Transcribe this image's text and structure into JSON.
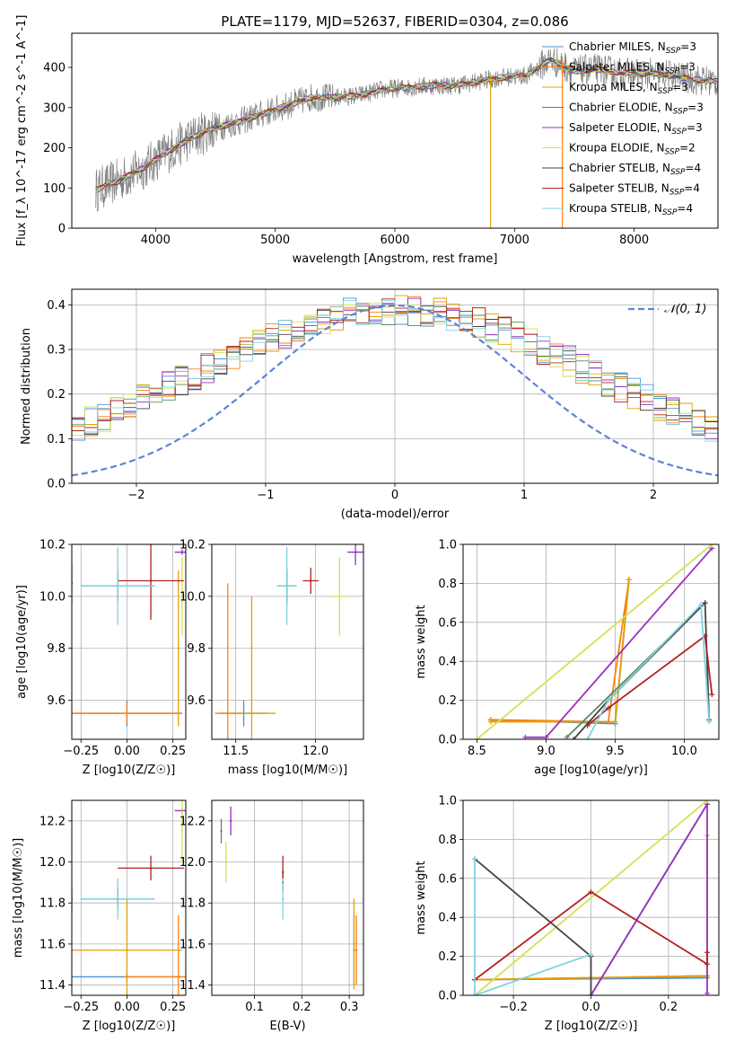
{
  "figure_title": "PLATE=1179, MJD=52637, FIBERID=0304, z=0.086",
  "models": [
    {
      "name": "Chabrier MILES",
      "nssp": "3",
      "color": "#4a90d9"
    },
    {
      "name": "Salpeter MILES",
      "nssp": "3",
      "color": "#ff7f0e"
    },
    {
      "name": "Kroupa MILES",
      "nssp": "3",
      "color": "#e69f00"
    },
    {
      "name": "Chabrier ELODIE",
      "nssp": "3",
      "color": "#5a8a5a"
    },
    {
      "name": "Salpeter ELODIE",
      "nssp": "3",
      "color": "#9b30c0"
    },
    {
      "name": "Kroupa ELODIE",
      "nssp": "2",
      "color": "#d4e157"
    },
    {
      "name": "Chabrier STELIB",
      "nssp": "4",
      "color": "#444444"
    },
    {
      "name": "Salpeter STELIB",
      "nssp": "4",
      "color": "#b22222"
    },
    {
      "name": "Kroupa STELIB",
      "nssp": "4",
      "color": "#7fd3e0"
    }
  ],
  "chart_data": [
    {
      "id": "spectrum",
      "type": "line",
      "xlabel": "wavelength [Angstrom, rest frame]",
      "ylabel": "Flux [f_λ 10^-17 erg cm^-2 s^-1 A^-1]",
      "xlim": [
        3300,
        8700
      ],
      "ylim": [
        0,
        485
      ],
      "xticks": [
        4000,
        5000,
        6000,
        7000,
        8000
      ],
      "yticks": [
        0,
        100,
        200,
        300,
        400
      ],
      "legend_position": "right",
      "continuum_points": [
        [
          3500,
          95
        ],
        [
          3700,
          120
        ],
        [
          3900,
          150
        ],
        [
          4100,
          190
        ],
        [
          4300,
          225
        ],
        [
          4500,
          250
        ],
        [
          4700,
          265
        ],
        [
          4900,
          285
        ],
        [
          5100,
          305
        ],
        [
          5300,
          325
        ],
        [
          5500,
          325
        ],
        [
          5700,
          330
        ],
        [
          5900,
          345
        ],
        [
          6100,
          350
        ],
        [
          6300,
          355
        ],
        [
          6500,
          355
        ],
        [
          6700,
          365
        ],
        [
          6900,
          375
        ],
        [
          7100,
          380
        ],
        [
          7300,
          420
        ],
        [
          7500,
          390
        ],
        [
          7700,
          395
        ],
        [
          7900,
          385
        ],
        [
          8100,
          385
        ],
        [
          8300,
          380
        ],
        [
          8500,
          370
        ],
        [
          8700,
          365
        ]
      ]
    },
    {
      "id": "residuals",
      "type": "histogram",
      "xlabel": "(data-model)/error",
      "ylabel": "Normed distribution",
      "xlim": [
        -2.5,
        2.5
      ],
      "ylim": [
        0,
        0.435
      ],
      "xticks": [
        -2,
        -1,
        0,
        1,
        2
      ],
      "yticks": [
        0.0,
        0.1,
        0.2,
        0.3,
        0.4
      ],
      "reference_curve": "N(0,1)",
      "legend_position": "top-right"
    },
    {
      "id": "age_vs_Z",
      "type": "scatter",
      "xlabel": "Z [log10(Z/Z☉)]",
      "ylabel": "age  [log10(age/yr)]",
      "xlim": [
        -0.3,
        0.32
      ],
      "ylim": [
        9.45,
        10.2
      ],
      "xticks": [
        -0.25,
        0.0,
        0.25
      ],
      "yticks": [
        9.6,
        9.8,
        10.0,
        10.2
      ],
      "points": [
        {
          "model": "Chabrier MILES",
          "x": 0.0,
          "y": 9.55,
          "xerr": 0.3,
          "yerr": 0.05
        },
        {
          "model": "Salpeter MILES",
          "x": 0.0,
          "y": 9.55,
          "xerr": 0.3,
          "yerr": 0.04
        },
        {
          "model": "Kroupa MILES",
          "x": 0.28,
          "y": 9.8,
          "xerr": 0.0,
          "yerr": 0.3
        },
        {
          "model": "Chabrier ELODIE",
          "x": -0.3,
          "y": 10.05,
          "xerr": 0.0,
          "yerr": 0.08
        },
        {
          "model": "Salpeter ELODIE",
          "x": 0.3,
          "y": 10.17,
          "xerr": 0.04,
          "yerr": 0.01
        },
        {
          "model": "Kroupa ELODIE",
          "x": 0.3,
          "y": 10.0,
          "xerr": 0.0,
          "yerr": 0.15
        },
        {
          "model": "Chabrier STELIB",
          "x": -0.05,
          "y": 10.04,
          "xerr": 0.2,
          "yerr": 0.06
        },
        {
          "model": "Salpeter STELIB",
          "x": 0.13,
          "y": 10.06,
          "xerr": 0.18,
          "yerr": 0.15
        },
        {
          "model": "Kroupa STELIB",
          "x": -0.05,
          "y": 10.04,
          "xerr": 0.2,
          "yerr": 0.15
        }
      ]
    },
    {
      "id": "age_vs_mass",
      "type": "scatter",
      "xlabel": "mass [log10(M/M☉)]",
      "ylabel": "",
      "xlim": [
        11.35,
        12.3
      ],
      "ylim": [
        9.45,
        10.2
      ],
      "xticks": [
        11.5,
        12.0
      ],
      "yticks": [
        9.6,
        9.8,
        10.0,
        10.2
      ],
      "points": [
        {
          "model": "Chabrier MILES",
          "x": 11.55,
          "y": 9.55,
          "xerr": 0.15,
          "yerr": 0.05
        },
        {
          "model": "Salpeter MILES",
          "x": 11.45,
          "y": 9.55,
          "xerr": 0.08,
          "yerr": 0.5
        },
        {
          "model": "Kroupa MILES",
          "x": 11.6,
          "y": 9.55,
          "xerr": 0.15,
          "yerr": 0.45
        },
        {
          "model": "Chabrier ELODIE",
          "x": 11.82,
          "y": 10.04,
          "xerr": 0.06,
          "yerr": 0.07
        },
        {
          "model": "Salpeter ELODIE",
          "x": 12.25,
          "y": 10.17,
          "xerr": 0.05,
          "yerr": 0.05
        },
        {
          "model": "Kroupa ELODIE",
          "x": 12.15,
          "y": 10.0,
          "xerr": 0.05,
          "yerr": 0.15
        },
        {
          "model": "Chabrier STELIB",
          "x": 11.82,
          "y": 10.04,
          "xerr": 0.06,
          "yerr": 0.06
        },
        {
          "model": "Salpeter STELIB",
          "x": 11.97,
          "y": 10.06,
          "xerr": 0.05,
          "yerr": 0.05
        },
        {
          "model": "Kroupa STELIB",
          "x": 11.82,
          "y": 10.04,
          "xerr": 0.06,
          "yerr": 0.15
        }
      ]
    },
    {
      "id": "weight_vs_age",
      "type": "line",
      "xlabel": "age  [log10(age/yr)]",
      "ylabel": "mass weight",
      "xlim": [
        8.4,
        10.25
      ],
      "ylim": [
        0,
        1
      ],
      "xticks": [
        8.5,
        9.0,
        9.5,
        10.0
      ],
      "yticks": [
        0.0,
        0.2,
        0.4,
        0.6,
        0.8,
        1.0
      ],
      "series": [
        {
          "model": "Chabrier MILES",
          "x": [
            8.6,
            9.5,
            9.6
          ],
          "y": [
            0.1,
            0.08,
            0.82
          ]
        },
        {
          "model": "Salpeter MILES",
          "x": [
            8.6,
            9.45,
            9.6
          ],
          "y": [
            0.1,
            0.09,
            0.82
          ]
        },
        {
          "model": "Kroupa MILES",
          "x": [
            8.6,
            9.5,
            9.6
          ],
          "y": [
            0.09,
            0.09,
            0.82
          ]
        },
        {
          "model": "Chabrier ELODIE",
          "x": [
            9.15,
            10.15
          ],
          "y": [
            0.01,
            0.7
          ]
        },
        {
          "model": "Salpeter ELODIE",
          "x": [
            8.85,
            9.0,
            10.2
          ],
          "y": [
            0.01,
            0.01,
            0.98
          ]
        },
        {
          "model": "Kroupa ELODIE",
          "x": [
            8.5,
            10.2
          ],
          "y": [
            0.0,
            1.0
          ]
        },
        {
          "model": "Chabrier STELIB",
          "x": [
            9.2,
            9.45,
            10.15,
            10.18
          ],
          "y": [
            0.0,
            0.2,
            0.7,
            0.1
          ]
        },
        {
          "model": "Salpeter STELIB",
          "x": [
            9.3,
            9.45,
            10.15,
            10.2
          ],
          "y": [
            0.07,
            0.16,
            0.53,
            0.23
          ]
        },
        {
          "model": "Kroupa STELIB",
          "x": [
            9.3,
            9.45,
            10.12,
            10.18
          ],
          "y": [
            0.0,
            0.2,
            0.69,
            0.09
          ]
        }
      ]
    },
    {
      "id": "mass_vs_Z",
      "type": "scatter",
      "xlabel": "Z [log10(Z/Z☉)]",
      "ylabel": "mass [log10(M/M☉)]",
      "xlim": [
        -0.3,
        0.32
      ],
      "ylim": [
        11.35,
        12.3
      ],
      "xticks": [
        -0.25,
        0.0,
        0.25
      ],
      "yticks": [
        11.4,
        11.6,
        11.8,
        12.0,
        12.2
      ],
      "points": [
        {
          "model": "Chabrier MILES",
          "x": 0.0,
          "y": 11.44,
          "xerr": 0.3,
          "yerr": 0.02
        },
        {
          "model": "Salpeter MILES",
          "x": 0.28,
          "y": 11.44,
          "xerr": 0.3,
          "yerr": 0.3
        },
        {
          "model": "Kroupa MILES",
          "x": 0.0,
          "y": 11.57,
          "xerr": 0.3,
          "yerr": 0.25
        },
        {
          "model": "Chabrier ELODIE",
          "x": -0.3,
          "y": 11.82,
          "xerr": 0.0,
          "yerr": 0.06
        },
        {
          "model": "Salpeter ELODIE",
          "x": 0.3,
          "y": 12.25,
          "xerr": 0.04,
          "yerr": 0.01
        },
        {
          "model": "Kroupa ELODIE",
          "x": 0.3,
          "y": 12.15,
          "xerr": 0.0,
          "yerr": 0.15
        },
        {
          "model": "Chabrier STELIB",
          "x": -0.05,
          "y": 11.82,
          "xerr": 0.2,
          "yerr": 0.05
        },
        {
          "model": "Salpeter STELIB",
          "x": 0.13,
          "y": 11.97,
          "xerr": 0.18,
          "yerr": 0.06
        },
        {
          "model": "Kroupa STELIB",
          "x": -0.05,
          "y": 11.82,
          "xerr": 0.2,
          "yerr": 0.1
        }
      ]
    },
    {
      "id": "mass_vs_ebv",
      "type": "scatter",
      "xlabel": "E(B-V)",
      "ylabel": "",
      "xlim": [
        0.01,
        0.33
      ],
      "ylim": [
        11.35,
        12.3
      ],
      "xticks": [
        0.1,
        0.2,
        0.3
      ],
      "yticks": [
        11.4,
        11.6,
        11.8,
        12.0,
        12.2
      ],
      "points": [
        {
          "model": "Chabrier MILES",
          "x": 0.31,
          "y": 11.57,
          "xerr": 0.0,
          "yerr": 0.17
        },
        {
          "model": "Salpeter MILES",
          "x": 0.315,
          "y": 11.57,
          "xerr": 0.0,
          "yerr": 0.17
        },
        {
          "model": "Kroupa MILES",
          "x": 0.31,
          "y": 11.6,
          "xerr": 0.0,
          "yerr": 0.22
        },
        {
          "model": "Chabrier ELODIE",
          "x": 0.03,
          "y": 12.15,
          "xerr": 0.0,
          "yerr": 0.06
        },
        {
          "model": "Salpeter ELODIE",
          "x": 0.05,
          "y": 12.2,
          "xerr": 0.0,
          "yerr": 0.07
        },
        {
          "model": "Kroupa ELODIE",
          "x": 0.04,
          "y": 12.0,
          "xerr": 0.0,
          "yerr": 0.1
        },
        {
          "model": "Chabrier STELIB",
          "x": 0.16,
          "y": 11.9,
          "xerr": 0.0,
          "yerr": 0.05
        },
        {
          "model": "Salpeter STELIB",
          "x": 0.16,
          "y": 11.95,
          "xerr": 0.0,
          "yerr": 0.08
        },
        {
          "model": "Kroupa STELIB",
          "x": 0.16,
          "y": 11.82,
          "xerr": 0.0,
          "yerr": 0.1
        }
      ]
    },
    {
      "id": "weight_vs_Z",
      "type": "line",
      "xlabel": "Z [log10(Z/Z☉)]",
      "ylabel": "mass weight",
      "xlim": [
        -0.33,
        0.33
      ],
      "ylim": [
        0,
        1
      ],
      "xticks": [
        -0.2,
        0.0,
        0.2
      ],
      "yticks": [
        0.0,
        0.2,
        0.4,
        0.6,
        0.8,
        1.0
      ],
      "series": [
        {
          "model": "Chabrier MILES",
          "x": [
            -0.3,
            0.3
          ],
          "y": [
            0.08,
            0.09
          ]
        },
        {
          "model": "Salpeter MILES",
          "x": [
            -0.3,
            0.3
          ],
          "y": [
            0.08,
            0.1
          ]
        },
        {
          "model": "Kroupa MILES",
          "x": [
            -0.3,
            0.3,
            0.3
          ],
          "y": [
            0.08,
            0.1,
            0.82
          ]
        },
        {
          "model": "Chabrier ELODIE",
          "x": [
            0.0,
            0.3
          ],
          "y": [
            0.0,
            0.98
          ]
        },
        {
          "model": "Salpeter ELODIE",
          "x": [
            0.0,
            0.3,
            0.3
          ],
          "y": [
            0.0,
            0.98,
            0.01
          ]
        },
        {
          "model": "Kroupa ELODIE",
          "x": [
            -0.3,
            0.3
          ],
          "y": [
            0.0,
            1.0
          ]
        },
        {
          "model": "Chabrier STELIB",
          "x": [
            -0.3,
            0.0,
            0.0
          ],
          "y": [
            0.7,
            0.2,
            0.0
          ]
        },
        {
          "model": "Salpeter STELIB",
          "x": [
            -0.3,
            0.0,
            0.3,
            0.3
          ],
          "y": [
            0.08,
            0.53,
            0.16,
            0.22
          ]
        },
        {
          "model": "Kroupa STELIB",
          "x": [
            -0.3,
            -0.3,
            0.0
          ],
          "y": [
            0.7,
            0.0,
            0.21
          ]
        }
      ]
    }
  ]
}
